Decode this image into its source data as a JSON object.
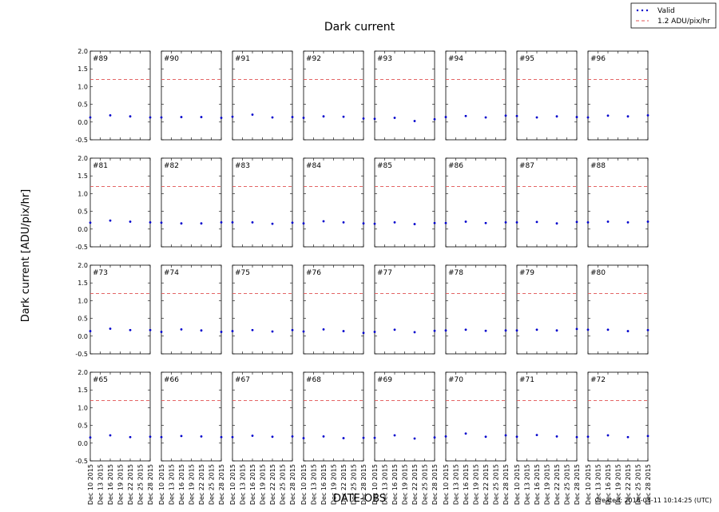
{
  "chart_data": {
    "type": "scatter",
    "title": "Dark current",
    "ylabel": "Dark current [ADU/pix/hr]",
    "xlabel": "DATE-OBS",
    "created": "Created: 2016-03-11 10:14:25 (UTC)",
    "ylim": [
      -0.5,
      2.0
    ],
    "yticks": [
      "2.0",
      "1.5",
      "1.0",
      "0.5",
      "0.0",
      "-0.5"
    ],
    "xticks": [
      "Dec 10 2015",
      "Dec 13 2015",
      "Dec 16 2015",
      "Dec 19 2015",
      "Dec 22 2015",
      "Dec 25 2015",
      "Dec 28 2015"
    ],
    "threshold": 1.2,
    "legend": [
      {
        "label": "Valid",
        "marker": "dots",
        "color": "#0000cc"
      },
      {
        "label": "1.2 ADU/pix/hr",
        "marker": "dashed",
        "color": "#e05050"
      }
    ],
    "legend_position": "top-right",
    "x_dates": [
      "Dec 10 2015",
      "Dec 16 2015",
      "Dec 22 2015",
      "Dec 28 2015"
    ],
    "panels": [
      {
        "id": "#89",
        "values": [
          0.13,
          0.19,
          0.16,
          0.13
        ]
      },
      {
        "id": "#90",
        "values": [
          0.13,
          0.14,
          0.14,
          0.12
        ]
      },
      {
        "id": "#91",
        "values": [
          0.15,
          0.21,
          0.13,
          0.14
        ]
      },
      {
        "id": "#92",
        "values": [
          0.12,
          0.16,
          0.15,
          0.1
        ]
      },
      {
        "id": "#93",
        "values": [
          0.09,
          0.12,
          0.03,
          0.08
        ]
      },
      {
        "id": "#94",
        "values": [
          0.14,
          0.17,
          0.13,
          0.18
        ]
      },
      {
        "id": "#95",
        "values": [
          0.17,
          0.13,
          0.16,
          0.14
        ]
      },
      {
        "id": "#96",
        "values": [
          0.13,
          0.18,
          0.16,
          0.19
        ]
      },
      {
        "id": "#81",
        "values": [
          0.18,
          0.24,
          0.21,
          0.19
        ]
      },
      {
        "id": "#82",
        "values": [
          0.18,
          0.16,
          0.16,
          0.19
        ]
      },
      {
        "id": "#83",
        "values": [
          0.19,
          0.19,
          0.15,
          0.18
        ]
      },
      {
        "id": "#84",
        "values": [
          0.16,
          0.22,
          0.19,
          0.16
        ]
      },
      {
        "id": "#85",
        "values": [
          0.15,
          0.19,
          0.14,
          0.17
        ]
      },
      {
        "id": "#86",
        "values": [
          0.17,
          0.21,
          0.17,
          0.19
        ]
      },
      {
        "id": "#87",
        "values": [
          0.19,
          0.2,
          0.16,
          0.2
        ]
      },
      {
        "id": "#88",
        "values": [
          0.19,
          0.21,
          0.19,
          0.21
        ]
      },
      {
        "id": "#73",
        "values": [
          0.14,
          0.21,
          0.17,
          0.17
        ]
      },
      {
        "id": "#74",
        "values": [
          0.12,
          0.19,
          0.16,
          0.12
        ]
      },
      {
        "id": "#75",
        "values": [
          0.14,
          0.17,
          0.13,
          0.17
        ]
      },
      {
        "id": "#76",
        "values": [
          0.13,
          0.19,
          0.14,
          0.09
        ]
      },
      {
        "id": "#77",
        "values": [
          0.12,
          0.18,
          0.11,
          0.15
        ]
      },
      {
        "id": "#78",
        "values": [
          0.16,
          0.18,
          0.15,
          0.16
        ]
      },
      {
        "id": "#79",
        "values": [
          0.16,
          0.18,
          0.16,
          0.2
        ]
      },
      {
        "id": "#80",
        "values": [
          0.18,
          0.18,
          0.14,
          0.17
        ]
      },
      {
        "id": "#65",
        "values": [
          0.16,
          0.22,
          0.17,
          0.18
        ]
      },
      {
        "id": "#66",
        "values": [
          0.17,
          0.2,
          0.19,
          0.17
        ]
      },
      {
        "id": "#67",
        "values": [
          0.17,
          0.21,
          0.18,
          0.19
        ]
      },
      {
        "id": "#68",
        "values": [
          0.14,
          0.19,
          0.14,
          0.15
        ]
      },
      {
        "id": "#69",
        "values": [
          0.15,
          0.22,
          0.13,
          0.16
        ]
      },
      {
        "id": "#70",
        "values": [
          0.19,
          0.27,
          0.18,
          0.22
        ]
      },
      {
        "id": "#71",
        "values": [
          0.18,
          0.23,
          0.19,
          0.17
        ]
      },
      {
        "id": "#72",
        "values": [
          0.18,
          0.22,
          0.17,
          0.2
        ]
      }
    ]
  }
}
